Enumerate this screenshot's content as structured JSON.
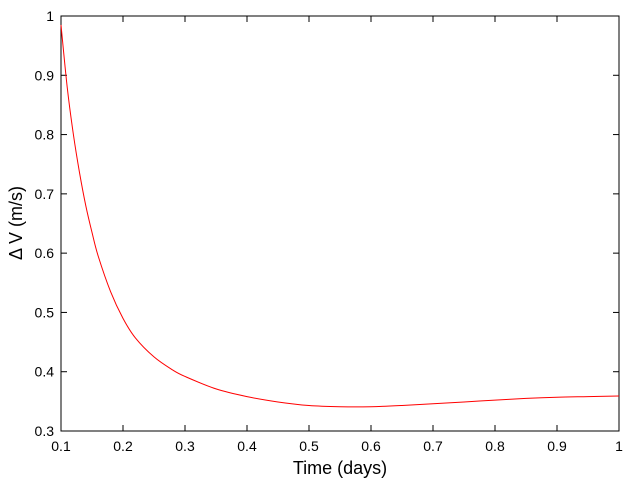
{
  "chart_data": {
    "type": "line",
    "title": "",
    "xlabel": "Time (days)",
    "ylabel": "Δ V (m/s)",
    "xlim": [
      0.1,
      1
    ],
    "ylim": [
      0.3,
      1
    ],
    "xticks": [
      "0.1",
      "0.2",
      "0.3",
      "0.4",
      "0.5",
      "0.6",
      "0.7",
      "0.8",
      "0.9",
      "1"
    ],
    "yticks": [
      "0.3",
      "0.4",
      "0.5",
      "0.6",
      "0.7",
      "0.8",
      "0.9",
      "1"
    ],
    "grid": false,
    "legend": "none",
    "series": [
      {
        "color": "#ff0000",
        "x": [
          0.1,
          0.11,
          0.12,
          0.13,
          0.14,
          0.15,
          0.16,
          0.18,
          0.2,
          0.22,
          0.25,
          0.28,
          0.3,
          0.35,
          0.4,
          0.45,
          0.5,
          0.55,
          0.6,
          0.65,
          0.7,
          0.75,
          0.8,
          0.85,
          0.9,
          0.95,
          1.0
        ],
        "y": [
          0.985,
          0.88,
          0.8,
          0.735,
          0.68,
          0.635,
          0.595,
          0.535,
          0.49,
          0.457,
          0.425,
          0.403,
          0.392,
          0.371,
          0.358,
          0.349,
          0.343,
          0.341,
          0.341,
          0.343,
          0.346,
          0.349,
          0.352,
          0.355,
          0.357,
          0.358,
          0.359
        ]
      }
    ]
  }
}
